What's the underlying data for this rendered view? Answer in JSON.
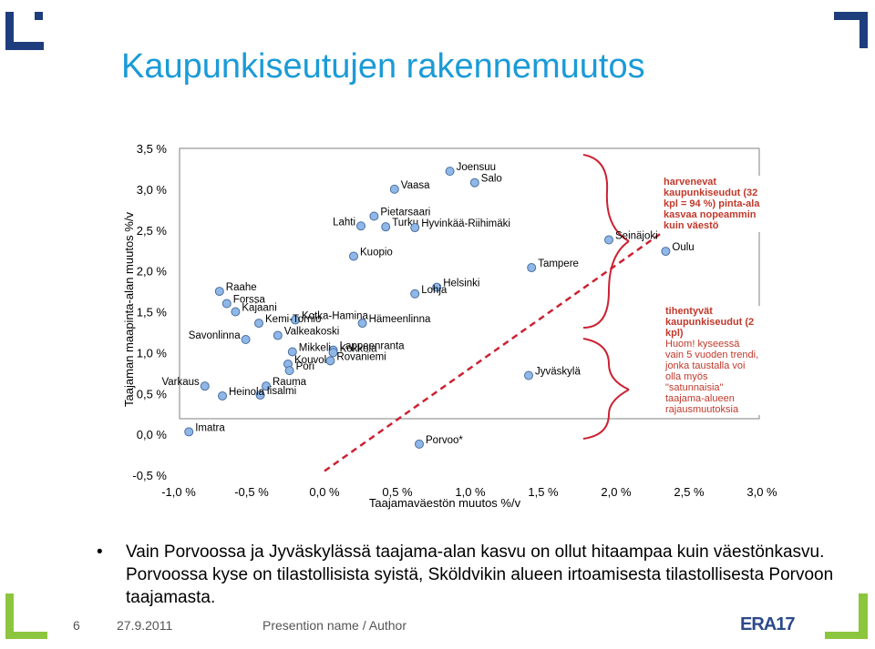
{
  "slide": {
    "title": "Kaupunkiseutujen rakennemuutos",
    "bullet": "Vain Porvoossa ja Jyväskylässä taajama-alan kasvu on ollut hitaampaa kuin väestönkasvu. Porvoossa kyse on tilastollisista syistä, Sköldvikin alueen irtoamisesta tilastollisesta Porvoon taajamasta.",
    "footer_page": "6",
    "footer_date": "27.9.2011",
    "footer_presentation": "Presention name / Author",
    "logo_text": "ERA17",
    "accent_color": "#1b9bd7",
    "corner_color": "#1e3d7d",
    "logo_green": "#8cc63f"
  },
  "chart_data": {
    "type": "scatter",
    "xlabel": "Taajamaväestön muutos %/v",
    "ylabel": "Taajaman maapinta-alan muutos %/v",
    "xlim": [
      -1.0,
      3.0
    ],
    "ylim": [
      -0.5,
      3.5
    ],
    "x_ticks": [
      "-1,0 %",
      "-0,5 %",
      "0,0 %",
      "0,5 %",
      "1,0 %",
      "1,5 %",
      "2,0 %",
      "2,5 %",
      "3,0 %"
    ],
    "y_ticks": [
      "3,5 %",
      "3,0 %",
      "2,5 %",
      "2,0 %",
      "1,5 %",
      "1,0 %",
      "0,5 %",
      "0,0 %",
      "-0,5 %"
    ],
    "grid": false,
    "diagonal_color": "#cc2233",
    "point_color": "#8fb8e8",
    "points": [
      {
        "name": "Joensuu",
        "x": 0.86,
        "y": 3.22
      },
      {
        "name": "Salo",
        "x": 1.03,
        "y": 3.08
      },
      {
        "name": "Vaasa",
        "x": 0.48,
        "y": 3.0
      },
      {
        "name": "Pietarsaari",
        "x": 0.34,
        "y": 2.67
      },
      {
        "name": "Lahti",
        "x": 0.25,
        "y": 2.55
      },
      {
        "name": "Turku",
        "x": 0.42,
        "y": 2.54
      },
      {
        "name": "Hyvinkää-Riihimäki",
        "x": 0.62,
        "y": 2.53
      },
      {
        "name": "Seinäjoki",
        "x": 1.95,
        "y": 2.38
      },
      {
        "name": "Oulu",
        "x": 2.34,
        "y": 2.24
      },
      {
        "name": "Kuopio",
        "x": 0.2,
        "y": 2.18
      },
      {
        "name": "Tampere",
        "x": 1.42,
        "y": 2.04
      },
      {
        "name": "Raahe",
        "x": -0.72,
        "y": 1.75
      },
      {
        "name": "Helsinki",
        "x": 0.77,
        "y": 1.8
      },
      {
        "name": "Lohja",
        "x": 0.62,
        "y": 1.72
      },
      {
        "name": "Forssa",
        "x": -0.67,
        "y": 1.6
      },
      {
        "name": "Kajaani",
        "x": -0.61,
        "y": 1.5
      },
      {
        "name": "Kotka-Hamina",
        "x": -0.2,
        "y": 1.4
      },
      {
        "name": "Kemi-Tornio",
        "x": -0.45,
        "y": 1.36
      },
      {
        "name": "Hämeenlinna",
        "x": 0.26,
        "y": 1.36
      },
      {
        "name": "Valkeakoski",
        "x": -0.32,
        "y": 1.21
      },
      {
        "name": "Savonlinna",
        "x": -0.54,
        "y": 1.16
      },
      {
        "name": "Lappeenranta",
        "x": 0.06,
        "y": 1.03
      },
      {
        "name": "Mikkeli",
        "x": -0.22,
        "y": 1.01
      },
      {
        "name": "Kokkola",
        "x": 0.06,
        "y": 1.0
      },
      {
        "name": "Kouvola",
        "x": -0.25,
        "y": 0.86
      },
      {
        "name": "Rovaniemi",
        "x": 0.04,
        "y": 0.9
      },
      {
        "name": "Pori",
        "x": -0.24,
        "y": 0.78
      },
      {
        "name": "Jyväskylä",
        "x": 1.4,
        "y": 0.72
      },
      {
        "name": "Varkaus",
        "x": -0.82,
        "y": 0.59
      },
      {
        "name": "Rauma",
        "x": -0.4,
        "y": 0.59
      },
      {
        "name": "Iisalmi",
        "x": -0.44,
        "y": 0.48
      },
      {
        "name": "Heinola",
        "x": -0.7,
        "y": 0.47
      },
      {
        "name": "Imatra",
        "x": -0.93,
        "y": 0.03
      },
      {
        "name": "Porvoo*",
        "x": 0.65,
        "y": -0.12
      }
    ],
    "annotation_top": "harvenevat kaupunkiseudut (32 kpl = 94 %) pinta-ala kasvaa nopeammin kuin väestö",
    "annotation_bottom_title": "tihentyvät kaupunkiseudut (2 kpl)",
    "annotation_bottom_note": "Huom! kyseessä vain 5 vuoden trendi, jonka taustalla voi olla myös \"satunnaisia\" taajama-alueen rajausmuutoksia",
    "annotation_color": "#c0392b"
  }
}
